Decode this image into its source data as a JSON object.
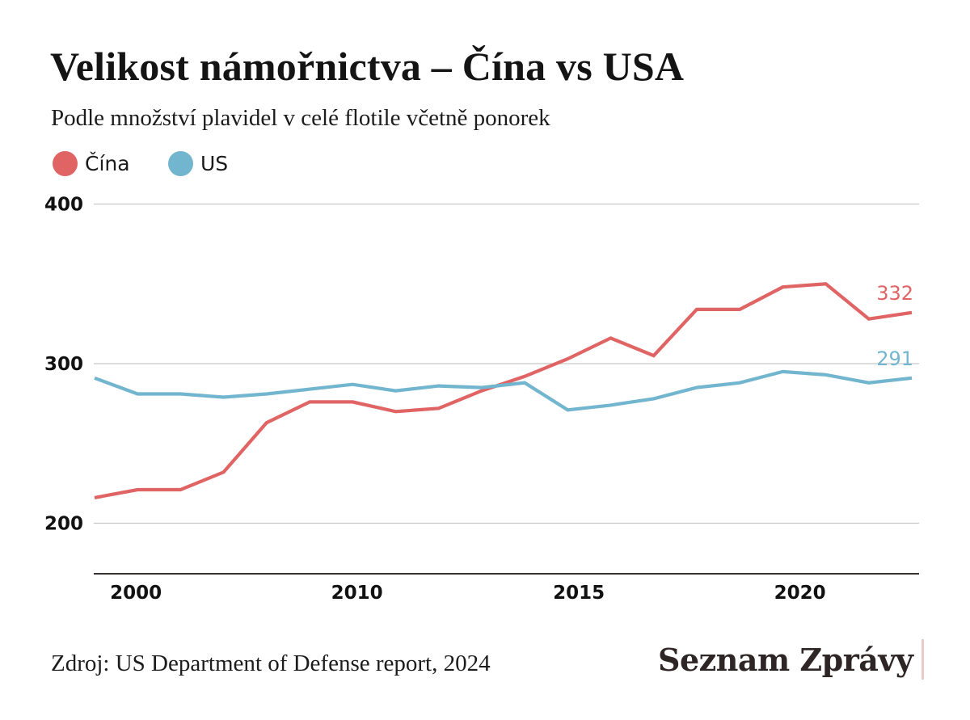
{
  "header": {
    "title": "Velikost námořnictva – Čína vs USA",
    "subtitle": "Podle množství plavidel v celé flotile včetně ponorek"
  },
  "legend": [
    {
      "label": "Čína",
      "color": "#e06464"
    },
    {
      "label": "US",
      "color": "#72b5cf"
    }
  ],
  "footer": {
    "source": "Zdroj: US Department of Defense report, 2024",
    "logo": "Seznam Zprávy",
    "logo_color": "#2e2526",
    "logo_accent": "#ebc9cc"
  },
  "chart_data": {
    "type": "line",
    "title": "Velikost námořnictva – Čína vs USA",
    "subtitle": "Podle množství plavidel v celé flotile včetně ponorek",
    "xlabel": "",
    "ylabel": "",
    "point_count": 20,
    "x_ticks": [
      {
        "label": "2000",
        "index": 0.96
      },
      {
        "label": "2010",
        "index": 6.1
      },
      {
        "label": "2015",
        "index": 11.26
      },
      {
        "label": "2020",
        "index": 16.4
      }
    ],
    "y_ticks": [
      200,
      300,
      400
    ],
    "ylim": [
      170,
      400
    ],
    "grid": true,
    "legend_position": "top-left",
    "series": [
      {
        "name": "Čína",
        "color": "#e06464",
        "values": [
          216,
          221,
          221,
          232,
          263,
          276,
          276,
          270,
          272,
          283,
          292,
          303,
          316,
          305,
          334,
          334,
          348,
          350,
          328,
          332
        ],
        "end_label": "332"
      },
      {
        "name": "US",
        "color": "#72b5cf",
        "values": [
          291,
          281,
          281,
          279,
          281,
          284,
          287,
          283,
          286,
          285,
          288,
          271,
          274,
          278,
          285,
          288,
          295,
          293,
          288,
          291
        ],
        "end_label": "291"
      }
    ]
  }
}
